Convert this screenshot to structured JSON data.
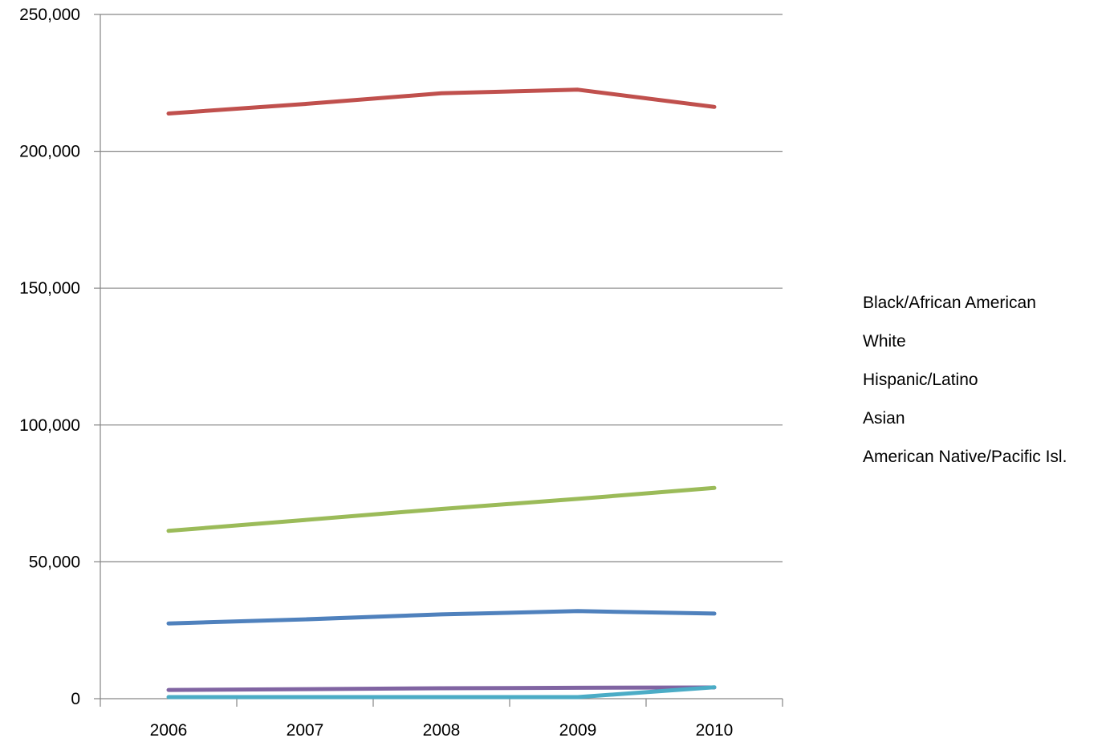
{
  "chart_data": {
    "type": "line",
    "title": "",
    "xlabel": "",
    "ylabel": "",
    "x": [
      "2006",
      "2007",
      "2008",
      "2009",
      "2010"
    ],
    "ylim": [
      0,
      250000
    ],
    "yticks": [
      0,
      50000,
      100000,
      150000,
      200000,
      250000
    ],
    "ytick_labels": [
      "0",
      "50,000",
      "100,000",
      "150,000",
      "200,000",
      "250,000"
    ],
    "grid": "horizontal",
    "legend_position": "right",
    "series": [
      {
        "name": "Black/African American",
        "color": "#4f81bd",
        "values": [
          27500,
          29000,
          30800,
          32000,
          31100
        ]
      },
      {
        "name": "White",
        "color": "#c0504d",
        "values": [
          213800,
          217300,
          221200,
          222500,
          216200
        ]
      },
      {
        "name": "Hispanic/Latino",
        "color": "#9bbb59",
        "values": [
          61300,
          65300,
          69300,
          73000,
          77000
        ]
      },
      {
        "name": "Asian",
        "color": "#8064a2",
        "values": [
          3200,
          3500,
          3800,
          4000,
          4100
        ]
      },
      {
        "name": "American Native/Pacific Isl.",
        "color": "#4bacc6",
        "values": [
          600,
          600,
          600,
          600,
          4200
        ]
      }
    ]
  }
}
